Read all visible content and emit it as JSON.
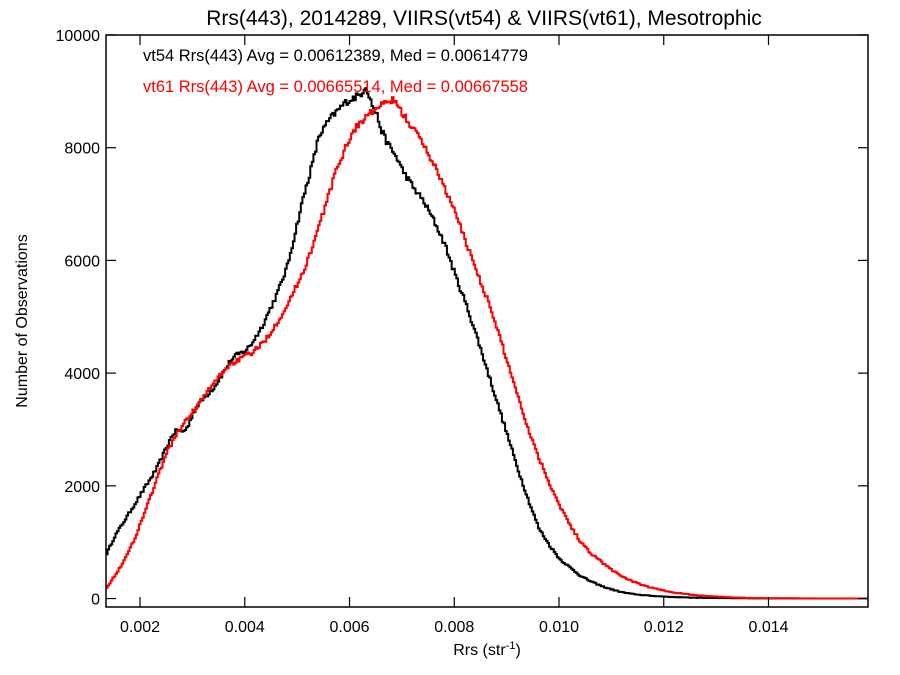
{
  "chart_data": {
    "type": "line",
    "title": "Rrs(443), 2014289, VIIRS(vt54) & VIIRS(vt61), Mesotrophic",
    "xlabel": "Rrs (str",
    "xlabel_sup": "-1",
    "xlabel_close": ")",
    "ylabel": "Number of Observations",
    "xlim": [
      0.00135,
      0.0159
    ],
    "ylim": [
      -150,
      10000
    ],
    "xticks": [
      {
        "value": 0.002,
        "label": "0.002"
      },
      {
        "value": 0.004,
        "label": "0.004"
      },
      {
        "value": 0.006,
        "label": "0.006"
      },
      {
        "value": 0.008,
        "label": "0.008"
      },
      {
        "value": 0.01,
        "label": "0.010"
      },
      {
        "value": 0.012,
        "label": "0.012"
      },
      {
        "value": 0.014,
        "label": "0.014"
      }
    ],
    "yticks": [
      {
        "value": 0,
        "label": "0"
      },
      {
        "value": 2000,
        "label": "2000"
      },
      {
        "value": 4000,
        "label": "4000"
      },
      {
        "value": 6000,
        "label": "6000"
      },
      {
        "value": 8000,
        "label": "8000"
      },
      {
        "value": 10000,
        "label": "10000"
      }
    ],
    "grid": false,
    "legend_position": "top-left",
    "series": [
      {
        "key": "vt54",
        "color": "#000000",
        "legend": "vt54 Rrs(443) Avg = 0.00612389, Med = 0.00614779",
        "x": [
          0.00135,
          0.0015,
          0.0017,
          0.0019,
          0.0021,
          0.0023,
          0.0025,
          0.0026,
          0.0027,
          0.0028,
          0.0029,
          0.003,
          0.0031,
          0.0032,
          0.0033,
          0.0034,
          0.0035,
          0.0036,
          0.0037,
          0.0038,
          0.0039,
          0.004,
          0.0041,
          0.0042,
          0.0043,
          0.0044,
          0.0045,
          0.0046,
          0.0047,
          0.0048,
          0.0049,
          0.005,
          0.0051,
          0.0052,
          0.0053,
          0.0054,
          0.0055,
          0.0056,
          0.0057,
          0.0058,
          0.0059,
          0.006,
          0.0061,
          0.0062,
          0.0063,
          0.0064,
          0.0065,
          0.0066,
          0.0067,
          0.0068,
          0.0069,
          0.007,
          0.0072,
          0.0074,
          0.0076,
          0.0078,
          0.008,
          0.0082,
          0.0084,
          0.0086,
          0.0088,
          0.009,
          0.0092,
          0.0094,
          0.0096,
          0.0098,
          0.01,
          0.0102,
          0.0104,
          0.0106,
          0.0108,
          0.011,
          0.0112,
          0.0114,
          0.0116,
          0.0118,
          0.012,
          0.0122,
          0.0124,
          0.0126,
          0.0128,
          0.013,
          0.0132,
          0.0134,
          0.0136,
          0.0138,
          0.014,
          0.0145,
          0.015,
          0.0159
        ],
        "y": [
          800,
          1100,
          1400,
          1700,
          2000,
          2300,
          2700,
          2900,
          3000,
          2950,
          3050,
          3300,
          3450,
          3550,
          3650,
          3750,
          3900,
          4050,
          4200,
          4300,
          4350,
          4400,
          4500,
          4650,
          4800,
          5000,
          5200,
          5400,
          5650,
          5900,
          6300,
          6700,
          7100,
          7450,
          7800,
          8200,
          8350,
          8500,
          8600,
          8700,
          8800,
          8850,
          8900,
          8950,
          9100,
          8800,
          8600,
          8300,
          8100,
          7950,
          7800,
          7600,
          7300,
          7050,
          6700,
          6300,
          5750,
          5250,
          4700,
          4100,
          3500,
          2900,
          2300,
          1750,
          1250,
          950,
          700,
          550,
          400,
          300,
          220,
          160,
          110,
          80,
          60,
          45,
          35,
          25,
          20,
          15,
          12,
          10,
          8,
          6,
          5,
          4,
          3,
          2,
          1,
          0
        ]
      },
      {
        "key": "vt61",
        "color": "#ff0000",
        "legend": "vt61 Rrs(443) Avg = 0.00665514, Med = 0.00667558",
        "x": [
          0.00135,
          0.0015,
          0.0017,
          0.0019,
          0.0021,
          0.0023,
          0.0025,
          0.0027,
          0.0029,
          0.0031,
          0.0033,
          0.0035,
          0.0037,
          0.0039,
          0.0041,
          0.0043,
          0.0045,
          0.0047,
          0.0049,
          0.0051,
          0.0053,
          0.0055,
          0.0057,
          0.0059,
          0.0061,
          0.0063,
          0.0065,
          0.0067,
          0.0068,
          0.0069,
          0.007,
          0.0072,
          0.0074,
          0.0076,
          0.0078,
          0.008,
          0.0082,
          0.0084,
          0.0086,
          0.0088,
          0.009,
          0.0092,
          0.0094,
          0.0096,
          0.0098,
          0.01,
          0.0102,
          0.0104,
          0.0106,
          0.0108,
          0.011,
          0.0112,
          0.0114,
          0.0116,
          0.0118,
          0.012,
          0.0122,
          0.0124,
          0.0126,
          0.0128,
          0.013,
          0.0132,
          0.0134,
          0.0136,
          0.0138,
          0.014,
          0.0145,
          0.015,
          0.0159
        ],
        "y": [
          200,
          400,
          700,
          1100,
          1600,
          2100,
          2600,
          2950,
          3200,
          3450,
          3700,
          3950,
          4150,
          4250,
          4350,
          4500,
          4750,
          5050,
          5400,
          5800,
          6300,
          6900,
          7500,
          8000,
          8350,
          8550,
          8700,
          8800,
          8850,
          8750,
          8600,
          8350,
          8050,
          7700,
          7300,
          6850,
          6350,
          5850,
          5350,
          4800,
          4200,
          3600,
          3000,
          2500,
          2050,
          1650,
          1300,
          1000,
          800,
          650,
          500,
          390,
          300,
          230,
          180,
          140,
          105,
          80,
          60,
          45,
          35,
          25,
          18,
          12,
          8,
          5,
          3,
          1,
          0
        ]
      }
    ]
  }
}
